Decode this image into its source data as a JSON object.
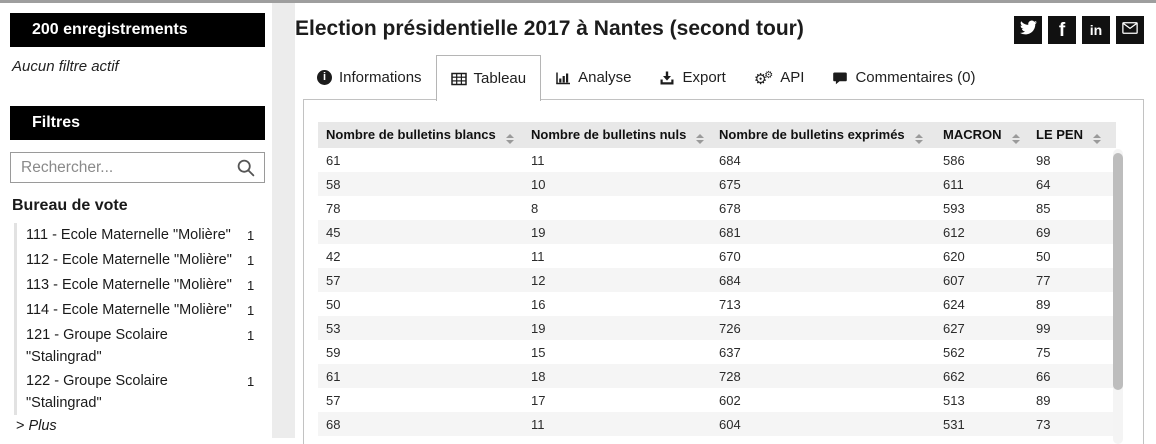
{
  "sidebar": {
    "records_banner": "200 enregistrements",
    "no_filter_text": "Aucun filtre actif",
    "filters_banner": "Filtres",
    "search": {
      "placeholder": "Rechercher..."
    },
    "facet": {
      "title": "Bureau de vote",
      "items": [
        {
          "label": "111 - Ecole Maternelle \"Molière\"",
          "count": "1"
        },
        {
          "label": "112 - Ecole Maternelle \"Molière\"",
          "count": "1"
        },
        {
          "label": "113 - Ecole Maternelle \"Molière\"",
          "count": "1"
        },
        {
          "label": "114 - Ecole Maternelle \"Molière\"",
          "count": "1"
        },
        {
          "label": "121 - Groupe Scolaire \"Stalingrad\"",
          "count": "1"
        },
        {
          "label": "122 - Groupe Scolaire \"Stalingrad\"",
          "count": "1"
        }
      ],
      "more_chevron": ">",
      "more_label": "Plus"
    }
  },
  "header": {
    "title": "Election présidentielle 2017 à Nantes (second tour)",
    "share_icons": [
      "twitter",
      "facebook",
      "linkedin",
      "email"
    ]
  },
  "tabs": [
    {
      "label": "Informations",
      "icon": "info-icon",
      "active": false
    },
    {
      "label": "Tableau",
      "icon": "table-icon",
      "active": true
    },
    {
      "label": "Analyse",
      "icon": "bar-chart-icon",
      "active": false
    },
    {
      "label": "Export",
      "icon": "download-icon",
      "active": false
    },
    {
      "label": "API",
      "icon": "gears-icon",
      "active": false
    },
    {
      "label": "Commentaires (0)",
      "icon": "comments-icon",
      "active": false
    }
  ],
  "table": {
    "columns": [
      "Nombre de bulletins blancs",
      "Nombre de bulletins nuls",
      "Nombre de bulletins exprimés",
      "MACRON",
      "LE PEN"
    ],
    "rows": [
      [
        61,
        11,
        684,
        586,
        98
      ],
      [
        58,
        10,
        675,
        611,
        64
      ],
      [
        78,
        8,
        678,
        593,
        85
      ],
      [
        45,
        19,
        681,
        612,
        69
      ],
      [
        42,
        11,
        670,
        620,
        50
      ],
      [
        57,
        12,
        684,
        607,
        77
      ],
      [
        50,
        16,
        713,
        624,
        89
      ],
      [
        53,
        19,
        726,
        627,
        99
      ],
      [
        59,
        15,
        637,
        562,
        75
      ],
      [
        61,
        18,
        728,
        662,
        66
      ],
      [
        57,
        17,
        602,
        513,
        89
      ],
      [
        68,
        11,
        604,
        531,
        73
      ]
    ]
  },
  "colors": {
    "banner_bg": "#000000",
    "banner_text": "#ffffff",
    "table_header_bg": "#e8e8e8",
    "row_stripe": "#f5f5f5",
    "share_icon_bg": "#111111",
    "top_bar": "#9e9e9e"
  }
}
